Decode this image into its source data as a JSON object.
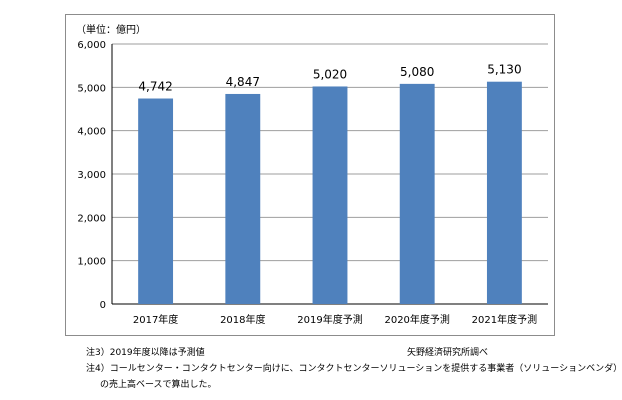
{
  "chart_data": {
    "type": "bar",
    "unit_label": "（単位：億円）",
    "categories": [
      "2017年度",
      "2018年度",
      "2019年度予測",
      "2020年度予測",
      "2021年度予測"
    ],
    "values": [
      4742,
      4847,
      5020,
      5080,
      5130
    ],
    "value_labels": [
      "4,742",
      "4,847",
      "5,020",
      "5,080",
      "5,130"
    ],
    "ylim": [
      0,
      6000
    ],
    "yticks": [
      0,
      1000,
      2000,
      3000,
      4000,
      5000,
      6000
    ],
    "ytick_labels": [
      "0",
      "1,000",
      "2,000",
      "3,000",
      "4,000",
      "5,000",
      "6,000"
    ],
    "grid": true,
    "bar_color": "#4f81bd",
    "grid_color": "#9e9e9e"
  },
  "notes": {
    "note1": "注3）2019年度以降は予測値",
    "note2": "注4）コールセンター・コンタクトセンター向けに、コンタクトセンターソリューションを提供する事業者（ソリューションベンダ）",
    "note3": "の売上高ベースで算出した。",
    "source": "矢野経済研究所調べ"
  }
}
